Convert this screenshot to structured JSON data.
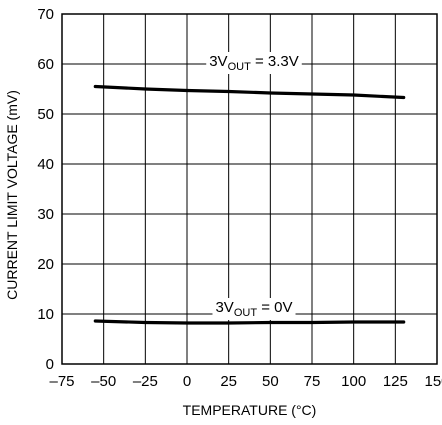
{
  "chart_data": {
    "type": "line",
    "xlabel": "TEMPERATURE (°C)",
    "ylabel": "CURRENT LIMIT VOLTAGE (mV)",
    "xlim": [
      -75,
      150
    ],
    "ylim": [
      0,
      70
    ],
    "x_ticks": [
      -75,
      -50,
      -25,
      0,
      25,
      50,
      75,
      100,
      125,
      150
    ],
    "y_ticks": [
      0,
      10,
      20,
      30,
      40,
      50,
      60,
      70
    ],
    "x_tick_labels": [
      "–75",
      "–50",
      "–25",
      "0",
      "25",
      "50",
      "75",
      "100",
      "125",
      "150"
    ],
    "y_tick_labels": [
      "0",
      "10",
      "20",
      "30",
      "40",
      "50",
      "60",
      "70"
    ],
    "grid": true,
    "series": [
      {
        "label_main": "3V",
        "label_sub": "OUT",
        "label_rest": " = 3.3V",
        "x": [
          -55,
          -25,
          0,
          25,
          50,
          75,
          100,
          130
        ],
        "y": [
          55.5,
          55.0,
          54.7,
          54.5,
          54.2,
          54.0,
          53.8,
          53.3
        ]
      },
      {
        "label_main": "3V",
        "label_sub": "OUT",
        "label_rest": " = 0V",
        "x": [
          -55,
          -25,
          0,
          25,
          50,
          75,
          100,
          130
        ],
        "y": [
          8.6,
          8.3,
          8.2,
          8.2,
          8.3,
          8.3,
          8.4,
          8.4
        ]
      }
    ]
  }
}
